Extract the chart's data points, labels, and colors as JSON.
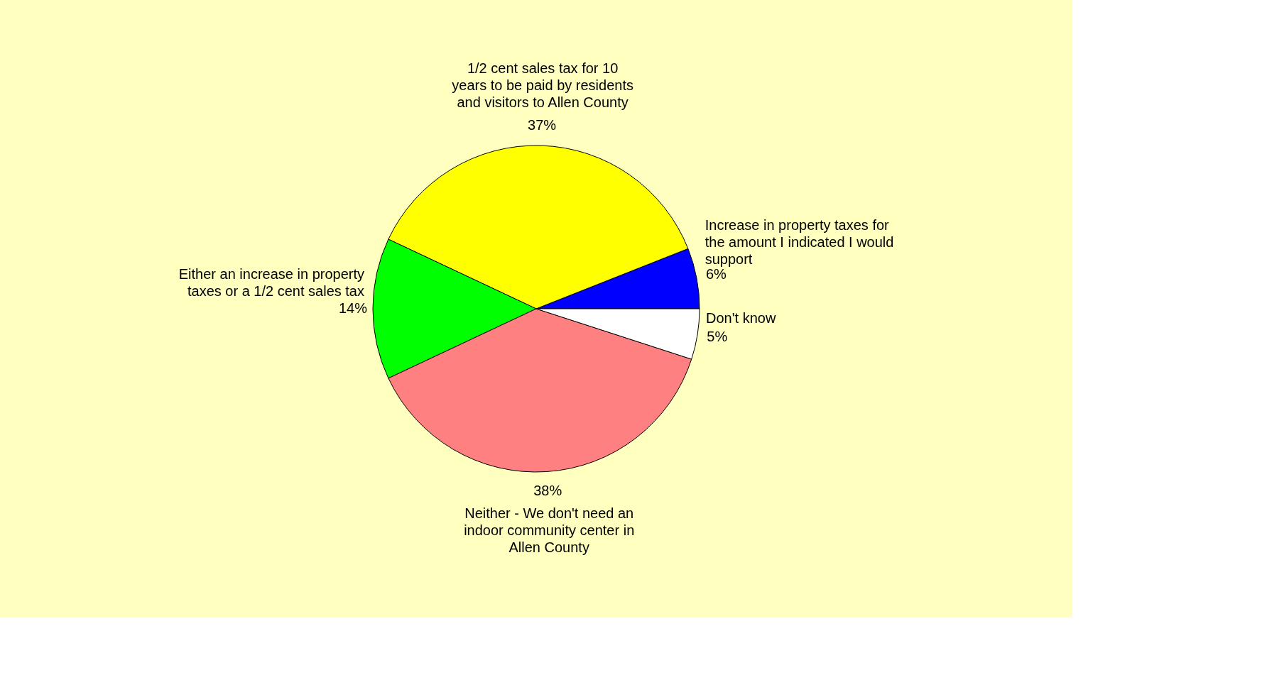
{
  "chart_data": {
    "type": "pie",
    "categories": [
      "Increase in property taxes for the amount I indicated I would support",
      "1/2 cent sales tax for 10 years to be paid by residents and visitors to Allen County",
      "Either an increase in property taxes or a 1/2 cent sales tax",
      "Neither - We don't need an indoor community center in Allen County",
      "Don't know"
    ],
    "values": [
      6,
      37,
      14,
      38,
      5
    ],
    "value_labels": [
      "6%",
      "37%",
      "14%",
      "38%",
      "5%"
    ],
    "colors": [
      "#0000ff",
      "#ffff00",
      "#00ff00",
      "#ff8080",
      "#ffffff"
    ],
    "legend": false
  }
}
